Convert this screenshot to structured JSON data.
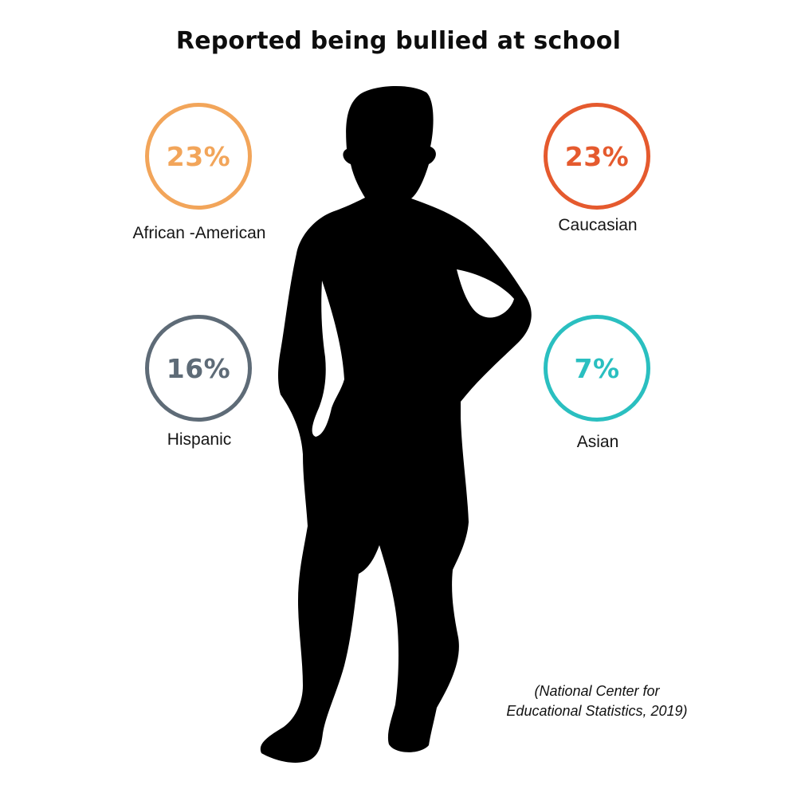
{
  "title": "Reported being bullied at school",
  "stats": [
    {
      "value": "23%",
      "label": "African -American",
      "color": "#F2A55A"
    },
    {
      "value": "23%",
      "label": "Caucasian",
      "color": "#E55A2E"
    },
    {
      "value": "16%",
      "label": "Hispanic",
      "color": "#5E6B77"
    },
    {
      "value": "7%",
      "label": "Asian",
      "color": "#2ABFC0"
    }
  ],
  "source": {
    "line1": "(National Center for",
    "line2": "Educational Statistics, 2019)"
  },
  "illustration": {
    "name": "child-silhouette",
    "color": "#000000"
  }
}
